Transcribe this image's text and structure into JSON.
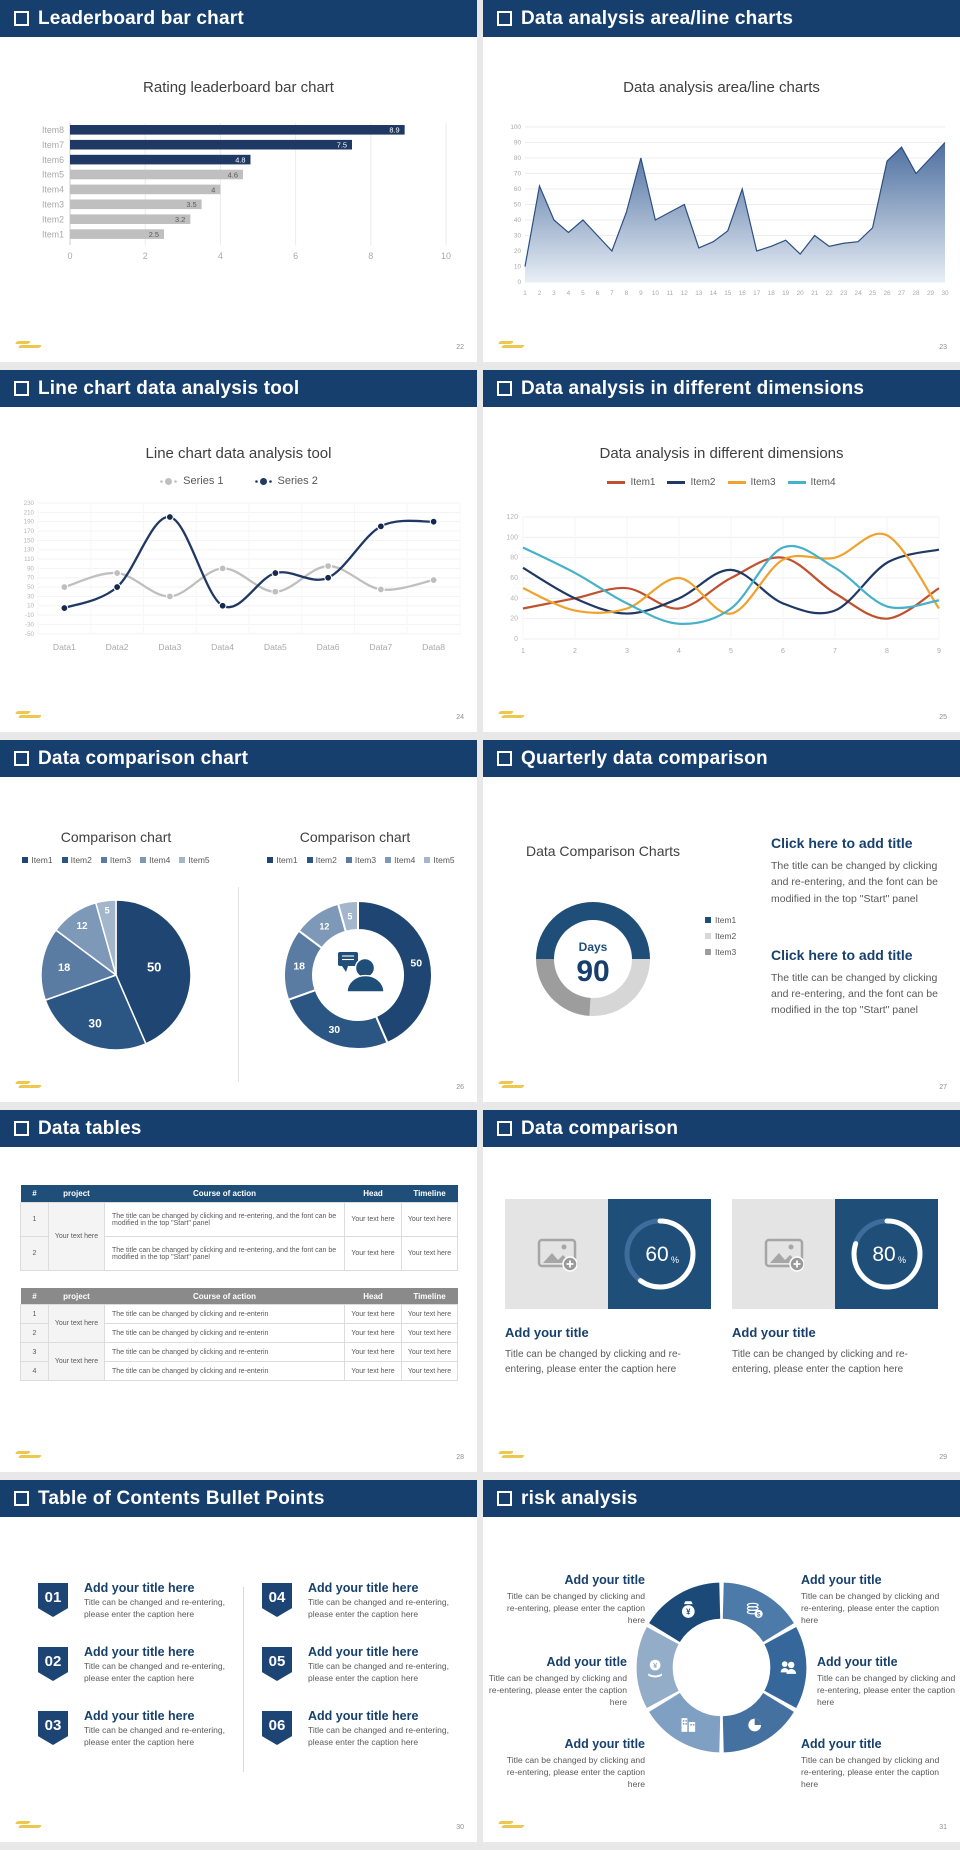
{
  "theme": {
    "header_navy": "#173f6e",
    "accent_navy": "#1f3864",
    "card_navy": "#1f4e79",
    "bar_gray": "#bfbfbf",
    "gold": "#edc13e"
  },
  "slides": {
    "s22": {
      "header": "Leaderboard bar chart",
      "page_num": "22"
    },
    "s23": {
      "header": "Data analysis area/line charts",
      "page_num": "23"
    },
    "s24": {
      "header": "Line chart data analysis tool",
      "page_num": "24"
    },
    "s25": {
      "header": "Data analysis in different dimensions",
      "page_num": "25"
    },
    "s26": {
      "header": "Data comparison chart",
      "page_num": "26"
    },
    "s27": {
      "header": "Quarterly data comparison",
      "page_num": "27",
      "blocks": [
        {
          "title": "Click here to add title",
          "body": "The title can be changed by clicking and re-entering, and the font can be modified in the top \"Start\" panel"
        },
        {
          "title": "Click here to add title",
          "body": "The title can be changed by clicking and re-entering, and the font can be modified in the top \"Start\" panel"
        }
      ]
    },
    "s28": {
      "header": "Data tables",
      "page_num": "28",
      "table1": {
        "headers": [
          "#",
          "project",
          "Course of action",
          "Head",
          "Timeline"
        ],
        "project_merged": "Your text here",
        "rows": [
          {
            "num": "1",
            "course": "The title can be changed by clicking and re-entering, and the font can be modified in the top \"Start\" panel",
            "head": "Your text here",
            "timeline": "Your text here"
          },
          {
            "num": "2",
            "course": "The title can be changed by clicking and re-entering, and the font can be modified in the top \"Start\" panel",
            "head": "Your text here",
            "timeline": "Your text here"
          }
        ]
      },
      "table2": {
        "headers": [
          "#",
          "project",
          "Course of action",
          "Head",
          "Timeline"
        ],
        "project_merged_a": "Your text here",
        "project_merged_b": "Your text here",
        "rows": [
          {
            "num": "1",
            "course": "The title can be changed by clicking and re-enterin",
            "head": "Your text here",
            "timeline": "Your text here"
          },
          {
            "num": "2",
            "course": "The title can be changed by clicking and re-enterin",
            "head": "Your text here",
            "timeline": "Your text here"
          },
          {
            "num": "3",
            "course": "The title can be changed by clicking and re-enterin",
            "head": "Your text here",
            "timeline": "Your text here"
          },
          {
            "num": "4",
            "course": "The title can be changed by clicking and re-enterin",
            "head": "Your text here",
            "timeline": "Your text here"
          }
        ]
      }
    },
    "s29": {
      "header": "Data comparison",
      "page_num": "29",
      "cards": [
        {
          "percent": 60,
          "title": "Add your title",
          "caption": "Title can be changed by clicking and re-entering, please enter the caption here"
        },
        {
          "percent": 80,
          "title": "Add your title",
          "caption": "Title can be changed by clicking and re-entering, please enter the caption here"
        }
      ]
    },
    "s30": {
      "header": "Table of Contents Bullet Points",
      "page_num": "30",
      "items": [
        {
          "num": "01",
          "title": "Add your title here",
          "caption": "Title can be changed and re-entering, please enter the caption here"
        },
        {
          "num": "02",
          "title": "Add your title here",
          "caption": "Title can be changed and re-entering, please enter the caption here"
        },
        {
          "num": "03",
          "title": "Add your title here",
          "caption": "Title can be changed and re-entering, please enter the caption here"
        },
        {
          "num": "04",
          "title": "Add your title here",
          "caption": "Title can be changed and re-entering, please enter the caption here"
        },
        {
          "num": "05",
          "title": "Add your title here",
          "caption": "Title can be changed and re-entering, please enter the caption here"
        },
        {
          "num": "06",
          "title": "Add your title here",
          "caption": "Title can be changed and re-entering, please enter the caption here"
        }
      ]
    },
    "s31": {
      "header": "risk analysis",
      "page_num": "31",
      "wheel_colors": [
        "#1b4a78",
        "#4c7aa9",
        "#36679a",
        "#44719f",
        "#7f9fc3",
        "#93adc9"
      ],
      "items": [
        {
          "title": "Add your title",
          "caption": "Title can be changed by clicking and re-entering, please enter the caption here"
        },
        {
          "title": "Add your title",
          "caption": "Title can be changed by clicking and re-entering, please enter the caption here"
        },
        {
          "title": "Add your title",
          "caption": "Title can be changed by clicking and re-entering, please enter the caption here"
        },
        {
          "title": "Add your title",
          "caption": "Title can be changed by clicking and re-entering, please enter the caption here"
        },
        {
          "title": "Add your title",
          "caption": "Title can be changed by clicking and re-entering, please enter the caption here"
        },
        {
          "title": "Add your title",
          "caption": "Title can be changed by clicking and re-entering, please enter the caption here"
        }
      ]
    }
  },
  "chart_data": [
    {
      "id": "leaderboard",
      "type": "bar",
      "orientation": "horizontal",
      "title": "Rating leaderboard bar chart",
      "categories": [
        "Item1",
        "Item2",
        "Item3",
        "Item4",
        "Item5",
        "Item6",
        "Item7",
        "Item8"
      ],
      "values": [
        2.5,
        3.2,
        3.5,
        4,
        4.6,
        4.8,
        7.5,
        8.9
      ],
      "bar_colors": [
        "gray",
        "gray",
        "gray",
        "gray",
        "gray",
        "navy",
        "navy",
        "navy"
      ],
      "colors": {
        "navy": "#1f3864",
        "gray": "#bfbfbf"
      },
      "xlim": [
        0,
        10
      ],
      "xticks": [
        0,
        2,
        4,
        6,
        8,
        10
      ]
    },
    {
      "id": "area",
      "type": "area",
      "title": "Data analysis area/line charts",
      "x": [
        1,
        2,
        3,
        4,
        5,
        6,
        7,
        8,
        9,
        10,
        11,
        12,
        13,
        14,
        15,
        16,
        17,
        18,
        19,
        20,
        21,
        22,
        23,
        24,
        25,
        26,
        27,
        28,
        29,
        30
      ],
      "values": [
        10,
        62,
        40,
        32,
        40,
        30,
        20,
        45,
        80,
        40,
        45,
        50,
        22,
        26,
        33,
        60,
        20,
        23,
        27,
        18,
        30,
        23,
        25,
        26,
        35,
        78,
        87,
        70,
        80,
        90
      ],
      "line_color": "#2d4f80",
      "fill_top": "#44689a",
      "fill_bottom": "#e8eef6",
      "ylim": [
        0,
        100
      ],
      "ytick_step": 10
    },
    {
      "id": "twolines",
      "type": "line",
      "title": "Line chart data analysis tool",
      "categories": [
        "Data1",
        "Data2",
        "Data3",
        "Data4",
        "Data5",
        "Data6",
        "Data7",
        "Data8"
      ],
      "series": [
        {
          "name": "Series 1",
          "color": "#bfbfbf",
          "values": [
            50,
            80,
            30,
            90,
            40,
            95,
            45,
            65
          ]
        },
        {
          "name": "Series 2",
          "color": "#1f3864",
          "values": [
            5,
            50,
            200,
            10,
            80,
            70,
            180,
            190
          ]
        }
      ],
      "ylim": [
        -50,
        230
      ],
      "ytick_step": 20
    },
    {
      "id": "fourlines",
      "type": "line",
      "title": "Data analysis in different dimensions",
      "x": [
        1,
        2,
        3,
        4,
        5,
        6,
        7,
        8,
        9
      ],
      "series": [
        {
          "name": "Item1",
          "color": "#c0512e",
          "values": [
            30,
            40,
            50,
            30,
            60,
            80,
            45,
            20,
            50
          ]
        },
        {
          "name": "Item2",
          "color": "#1f3864",
          "values": [
            70,
            40,
            25,
            40,
            68,
            35,
            28,
            75,
            88
          ]
        },
        {
          "name": "Item3",
          "color": "#f0a22e",
          "values": [
            50,
            28,
            30,
            60,
            25,
            78,
            80,
            102,
            30
          ]
        },
        {
          "name": "Item4",
          "color": "#46b1c9",
          "values": [
            90,
            65,
            35,
            15,
            30,
            90,
            70,
            32,
            38
          ]
        }
      ],
      "ylim": [
        0,
        120
      ],
      "ytick_step": 20
    },
    {
      "id": "pie",
      "type": "pie",
      "title": "Comparison chart",
      "labels": [
        "Item1",
        "Item2",
        "Item3",
        "Item4",
        "Item5"
      ],
      "values": [
        50,
        30,
        18,
        12,
        5
      ],
      "colors": [
        "#1f4572",
        "#2b5684",
        "#5a7ca3",
        "#7e98b7",
        "#a3b6cb"
      ]
    },
    {
      "id": "donutperson",
      "type": "donut",
      "title": "Comparison chart",
      "labels": [
        "Item1",
        "Item2",
        "Item3",
        "Item4",
        "Item5"
      ],
      "values": [
        50,
        30,
        18,
        12,
        5
      ],
      "colors": [
        "#1f4572",
        "#2b5684",
        "#5a7ca3",
        "#7e98b7",
        "#a3b6cb"
      ],
      "center_icon": "person-presentation-icon"
    },
    {
      "id": "daysdonut",
      "type": "donut",
      "title": "Data Comparison Charts",
      "labels": [
        "Item1",
        "Item2",
        "Item3"
      ],
      "values": [
        50,
        26,
        24
      ],
      "colors": [
        "#1f4e79",
        "#d6d6d6",
        "#9d9d9d"
      ],
      "center_label": "Days",
      "center_value": "90",
      "start_angle": 270
    },
    {
      "id": "gauge60",
      "type": "gauge",
      "value": 60,
      "unit": "%",
      "ring_color": "#ffffff",
      "bg": "#1f4e79"
    },
    {
      "id": "gauge80",
      "type": "gauge",
      "value": 80,
      "unit": "%",
      "ring_color": "#ffffff",
      "bg": "#1f4e79"
    }
  ]
}
